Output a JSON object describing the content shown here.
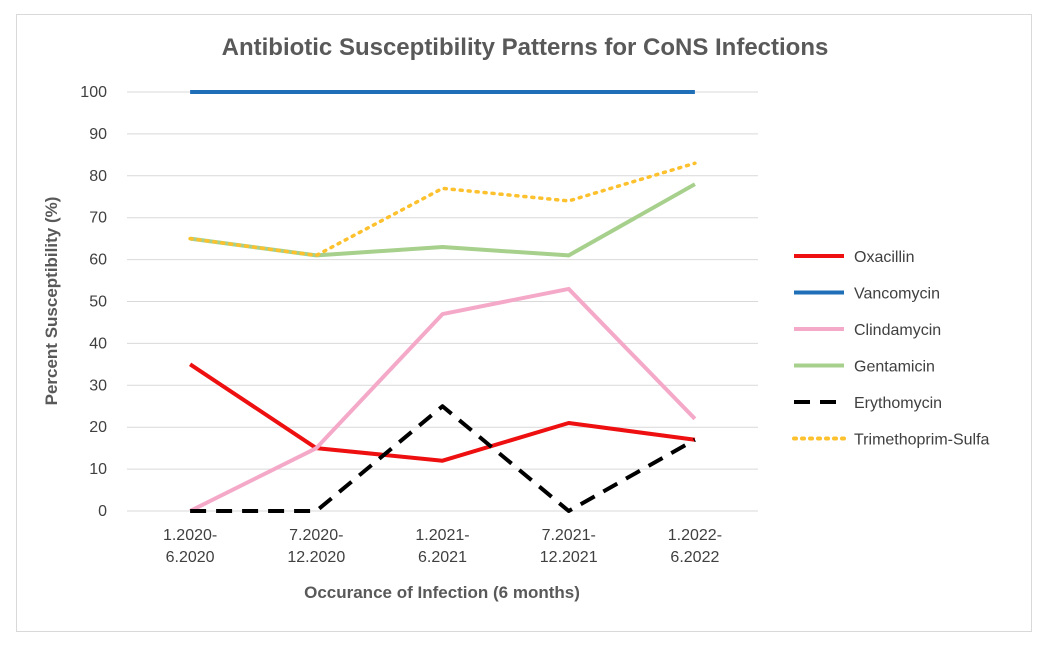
{
  "chart_data": {
    "type": "line",
    "title": "Antibiotic Susceptibility Patterns for CoNS Infections",
    "xlabel": "Occurance of Infection (6 months)",
    "ylabel": "Percent Susceptibility (%)",
    "ylim": [
      0,
      100
    ],
    "yticks": [
      "0",
      "10",
      "20",
      "30",
      "40",
      "50",
      "60",
      "70",
      "80",
      "90",
      "100"
    ],
    "categories": [
      [
        "1.2020-",
        "6.2020"
      ],
      [
        "7.2020-",
        "12.2020"
      ],
      [
        "1.2021-",
        "6.2021"
      ],
      [
        "7.2021-",
        "12.2021"
      ],
      [
        "1.2022-",
        "6.2022"
      ]
    ],
    "grid": true,
    "legend_position": "right",
    "series": [
      {
        "name": "Oxacillin",
        "color": "#ee1010",
        "style": "solid",
        "values": [
          35,
          15,
          12,
          21,
          17
        ]
      },
      {
        "name": "Vancomycin",
        "color": "#1f6fb8",
        "style": "solid",
        "values": [
          100,
          100,
          100,
          100,
          100
        ]
      },
      {
        "name": "Clindamycin",
        "color": "#f4a9c8",
        "style": "solid",
        "values": [
          0,
          15,
          47,
          53,
          22
        ]
      },
      {
        "name": "Gentamicin",
        "color": "#a6d08c",
        "style": "solid",
        "values": [
          65,
          61,
          63,
          61,
          78
        ]
      },
      {
        "name": "Erythomycin",
        "color": "#000000",
        "style": "dashed",
        "values": [
          0,
          0,
          25,
          0,
          17
        ]
      },
      {
        "name": "Trimethoprim-Sulfa",
        "color": "#fcc12d",
        "style": "dotted",
        "values": [
          65,
          61,
          77,
          74,
          83
        ]
      }
    ]
  }
}
